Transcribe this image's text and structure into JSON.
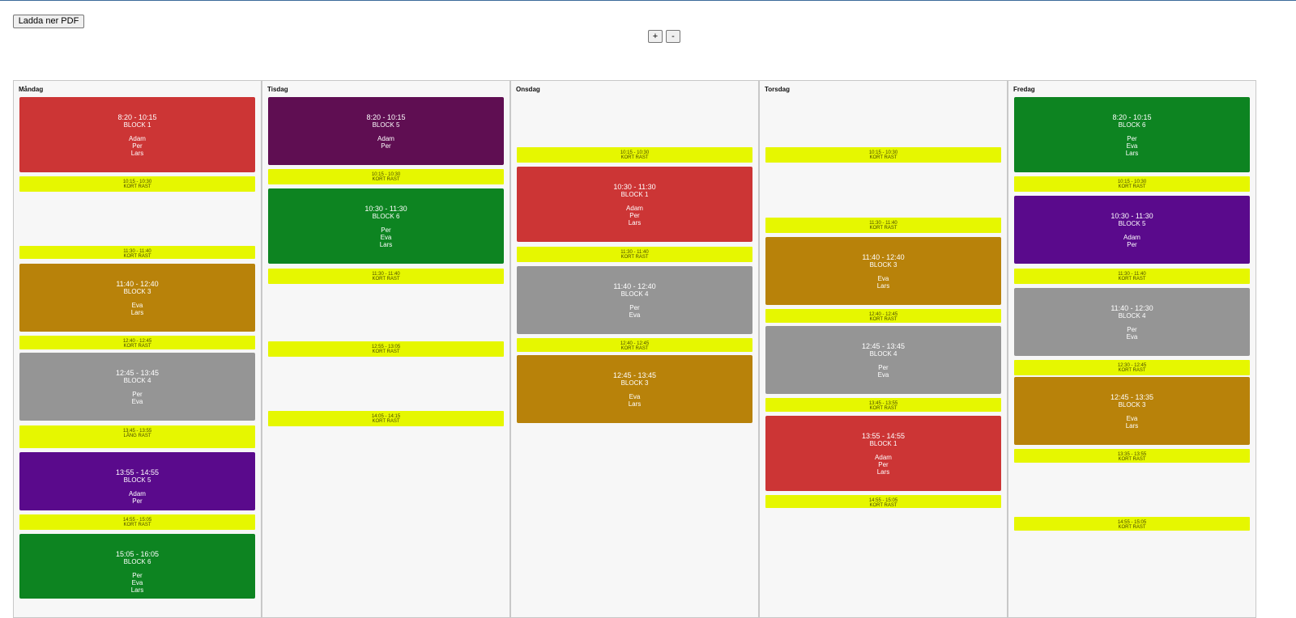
{
  "toolbar": {
    "download_pdf_label": "Ladda ner PDF",
    "zoom_in_label": "+",
    "zoom_out_label": "-"
  },
  "colors": {
    "block1": "#cc3535",
    "block3": "#b8820a",
    "block4": "#959595",
    "block5": "#5a0a8c",
    "block5_tisdag": "#5f0e52",
    "block6": "#0d8421",
    "break": "#e6f700"
  },
  "days": [
    {
      "name": "Måndag",
      "items": [
        {
          "kind": "event",
          "time": "8:20 - 10:15",
          "name": "BLOCK 1",
          "people": [
            "Adam",
            "Per",
            "Lars"
          ],
          "color": "#cc3535"
        },
        {
          "kind": "break",
          "time": "10:15 - 10:30",
          "name": "KORT RAST"
        },
        {
          "kind": "break",
          "time": "11:30 - 11:40",
          "name": "KORT RAST"
        },
        {
          "kind": "event",
          "time": "11:40 - 12:40",
          "name": "BLOCK 3",
          "people": [
            "Eva",
            "Lars"
          ],
          "color": "#b8820a"
        },
        {
          "kind": "break",
          "time": "12:40 - 12:45",
          "name": "KORT RAST"
        },
        {
          "kind": "event",
          "time": "12:45 - 13:45",
          "name": "BLOCK 4",
          "people": [
            "Per",
            "Eva"
          ],
          "color": "#959595"
        },
        {
          "kind": "break",
          "time": "13:45 - 13:55",
          "name": "LÅNG RAST"
        },
        {
          "kind": "event",
          "time": "13:55 - 14:55",
          "name": "BLOCK 5",
          "people": [
            "Adam",
            "Per"
          ],
          "color": "#5a0a8c"
        },
        {
          "kind": "break",
          "time": "14:55 - 15:05",
          "name": "KORT RAST"
        },
        {
          "kind": "event",
          "time": "15:05 - 16:05",
          "name": "BLOCK 6",
          "people": [
            "Per",
            "Eva",
            "Lars"
          ],
          "color": "#0d8421"
        }
      ]
    },
    {
      "name": "Tisdag",
      "items": [
        {
          "kind": "event",
          "time": "8:20 - 10:15",
          "name": "BLOCK 5",
          "people": [
            "Adam",
            "Per"
          ],
          "color": "#5f0e52"
        },
        {
          "kind": "break",
          "time": "10:15 - 10:30",
          "name": "KORT RAST"
        },
        {
          "kind": "event",
          "time": "10:30 - 11:30",
          "name": "BLOCK 6",
          "people": [
            "Per",
            "Eva",
            "Lars"
          ],
          "color": "#0d8421"
        },
        {
          "kind": "break",
          "time": "11:30 - 11:40",
          "name": "KORT RAST"
        },
        {
          "kind": "break",
          "time": "12:55 - 13:05",
          "name": "KORT RAST"
        },
        {
          "kind": "break",
          "time": "14:05 - 14:15",
          "name": "KORT RAST"
        }
      ]
    },
    {
      "name": "Onsdag",
      "items": [
        {
          "kind": "break",
          "time": "10:15 - 10:30",
          "name": "KORT RAST"
        },
        {
          "kind": "event",
          "time": "10:30 - 11:30",
          "name": "BLOCK 1",
          "people": [
            "Adam",
            "Per",
            "Lars"
          ],
          "color": "#cc3535"
        },
        {
          "kind": "break",
          "time": "11:30 - 11:40",
          "name": "KORT RAST"
        },
        {
          "kind": "event",
          "time": "11:40 - 12:40",
          "name": "BLOCK 4",
          "people": [
            "Per",
            "Eva"
          ],
          "color": "#959595"
        },
        {
          "kind": "break",
          "time": "12:40 - 12:45",
          "name": "KORT RAST"
        },
        {
          "kind": "event",
          "time": "12:45 - 13:45",
          "name": "BLOCK 3",
          "people": [
            "Eva",
            "Lars"
          ],
          "color": "#b8820a"
        }
      ]
    },
    {
      "name": "Torsdag",
      "items": [
        {
          "kind": "break",
          "time": "10:15 - 10:30",
          "name": "KORT RAST"
        },
        {
          "kind": "break",
          "time": "11:30 - 11:40",
          "name": "KORT RAST"
        },
        {
          "kind": "event",
          "time": "11:40 - 12:40",
          "name": "BLOCK 3",
          "people": [
            "Eva",
            "Lars"
          ],
          "color": "#b8820a"
        },
        {
          "kind": "break",
          "time": "12:40 - 12:45",
          "name": "KORT RAST"
        },
        {
          "kind": "event",
          "time": "12:45 - 13:45",
          "name": "BLOCK 4",
          "people": [
            "Per",
            "Eva"
          ],
          "color": "#959595"
        },
        {
          "kind": "break",
          "time": "13:45 - 13:55",
          "name": "KORT RAST"
        },
        {
          "kind": "event",
          "time": "13:55 - 14:55",
          "name": "BLOCK 1",
          "people": [
            "Adam",
            "Per",
            "Lars"
          ],
          "color": "#cc3535"
        },
        {
          "kind": "break",
          "time": "14:55 - 15:05",
          "name": "KORT RAST"
        }
      ]
    },
    {
      "name": "Fredag",
      "items": [
        {
          "kind": "event",
          "time": "8:20 - 10:15",
          "name": "BLOCK 6",
          "people": [
            "Per",
            "Eva",
            "Lars"
          ],
          "color": "#0d8421"
        },
        {
          "kind": "break",
          "time": "10:15 - 10:30",
          "name": "KORT RAST"
        },
        {
          "kind": "event",
          "time": "10:30 - 11:30",
          "name": "BLOCK 5",
          "people": [
            "Adam",
            "Per"
          ],
          "color": "#5a0a8c"
        },
        {
          "kind": "break",
          "time": "11:30 - 11:40",
          "name": "KORT RAST"
        },
        {
          "kind": "event",
          "time": "11:40 - 12:30",
          "name": "BLOCK 4",
          "people": [
            "Per",
            "Eva"
          ],
          "color": "#959595"
        },
        {
          "kind": "break",
          "time": "12:30 - 12:45",
          "name": "KORT RAST"
        },
        {
          "kind": "event",
          "time": "12:45 - 13:35",
          "name": "BLOCK 3",
          "people": [
            "Eva",
            "Lars"
          ],
          "color": "#b8820a"
        },
        {
          "kind": "break",
          "time": "13:35 - 13:55",
          "name": "KORT RAST"
        },
        {
          "kind": "break",
          "time": "14:55 - 15:05",
          "name": "KORT RAST"
        }
      ]
    }
  ]
}
